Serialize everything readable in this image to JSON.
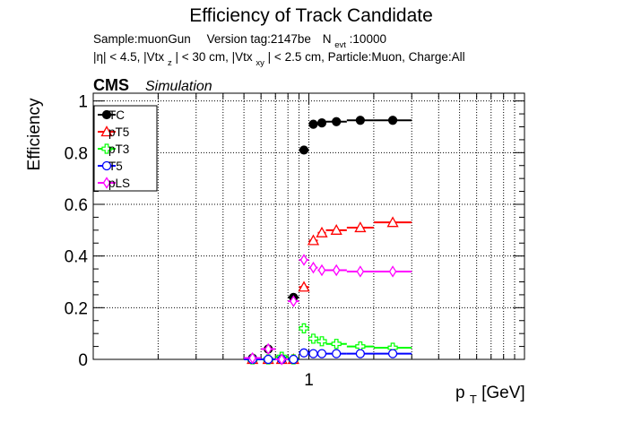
{
  "chart_data": {
    "type": "scatter",
    "title": "Efficiency of Track Candidate",
    "info_line1": {
      "sample": "Sample:muonGun",
      "version": "Version tag:2147be",
      "nevt_label": "N",
      "nevt_sub": "evt",
      "nevt_value": ":10000"
    },
    "info_line2": {
      "eta": "|η| < 4.5, |Vtx",
      "vtxz_sub": "z",
      "vtxz_cut": "| < 30 cm, |Vtx",
      "vtxxy_sub": "xy",
      "rest": "| < 2.5 cm, Particle:Muon, Charge:All"
    },
    "cms_label": "CMS",
    "simulation_label": "Simulation",
    "ylabel": "Efficiency",
    "xlabel_main": "p",
    "xlabel_sub": "T",
    "xlabel_unit": " [GeV]",
    "x_scale": "log",
    "xlim": [
      0.1,
      10
    ],
    "ylim": [
      0,
      1.03
    ],
    "grid": true,
    "legend_position": "top-left",
    "x_ticks": [
      {
        "value": 1,
        "label": "1"
      }
    ],
    "y_ticks": [
      {
        "value": 0,
        "label": "0"
      },
      {
        "value": 0.2,
        "label": "0.2"
      },
      {
        "value": 0.4,
        "label": "0.4"
      },
      {
        "value": 0.6,
        "label": "0.6"
      },
      {
        "value": 0.8,
        "label": "0.8"
      },
      {
        "value": 1,
        "label": "1"
      }
    ],
    "bin_edges": [
      0.5,
      0.6,
      0.7,
      0.8,
      0.9,
      1.0,
      1.1,
      1.2,
      1.5,
      2.0,
      3.0
    ],
    "series": [
      {
        "name": "TC",
        "color": "#000000",
        "marker": "filled-circle",
        "values": [
          0.005,
          0.04,
          0.0,
          0.24,
          0.81,
          0.91,
          0.915,
          0.92,
          0.925,
          0.925
        ]
      },
      {
        "name": "pT5",
        "color": "#ff0000",
        "marker": "open-triangle",
        "values": [
          0.0,
          0.0,
          0.0,
          0.0,
          0.28,
          0.46,
          0.49,
          0.5,
          0.51,
          0.53
        ]
      },
      {
        "name": "pT3",
        "color": "#00ff00",
        "marker": "open-cross",
        "values": [
          0.0,
          0.0,
          0.01,
          0.0,
          0.12,
          0.08,
          0.07,
          0.06,
          0.05,
          0.045
        ]
      },
      {
        "name": "T5",
        "color": "#0000ff",
        "marker": "open-circle",
        "values": [
          0.0,
          0.0,
          0.0,
          0.0,
          0.025,
          0.022,
          0.022,
          0.022,
          0.022,
          0.022
        ]
      },
      {
        "name": "pLS",
        "color": "#ff00ff",
        "marker": "open-diamond",
        "values": [
          0.005,
          0.04,
          0.0,
          0.225,
          0.385,
          0.355,
          0.345,
          0.345,
          0.34,
          0.34
        ]
      }
    ]
  }
}
